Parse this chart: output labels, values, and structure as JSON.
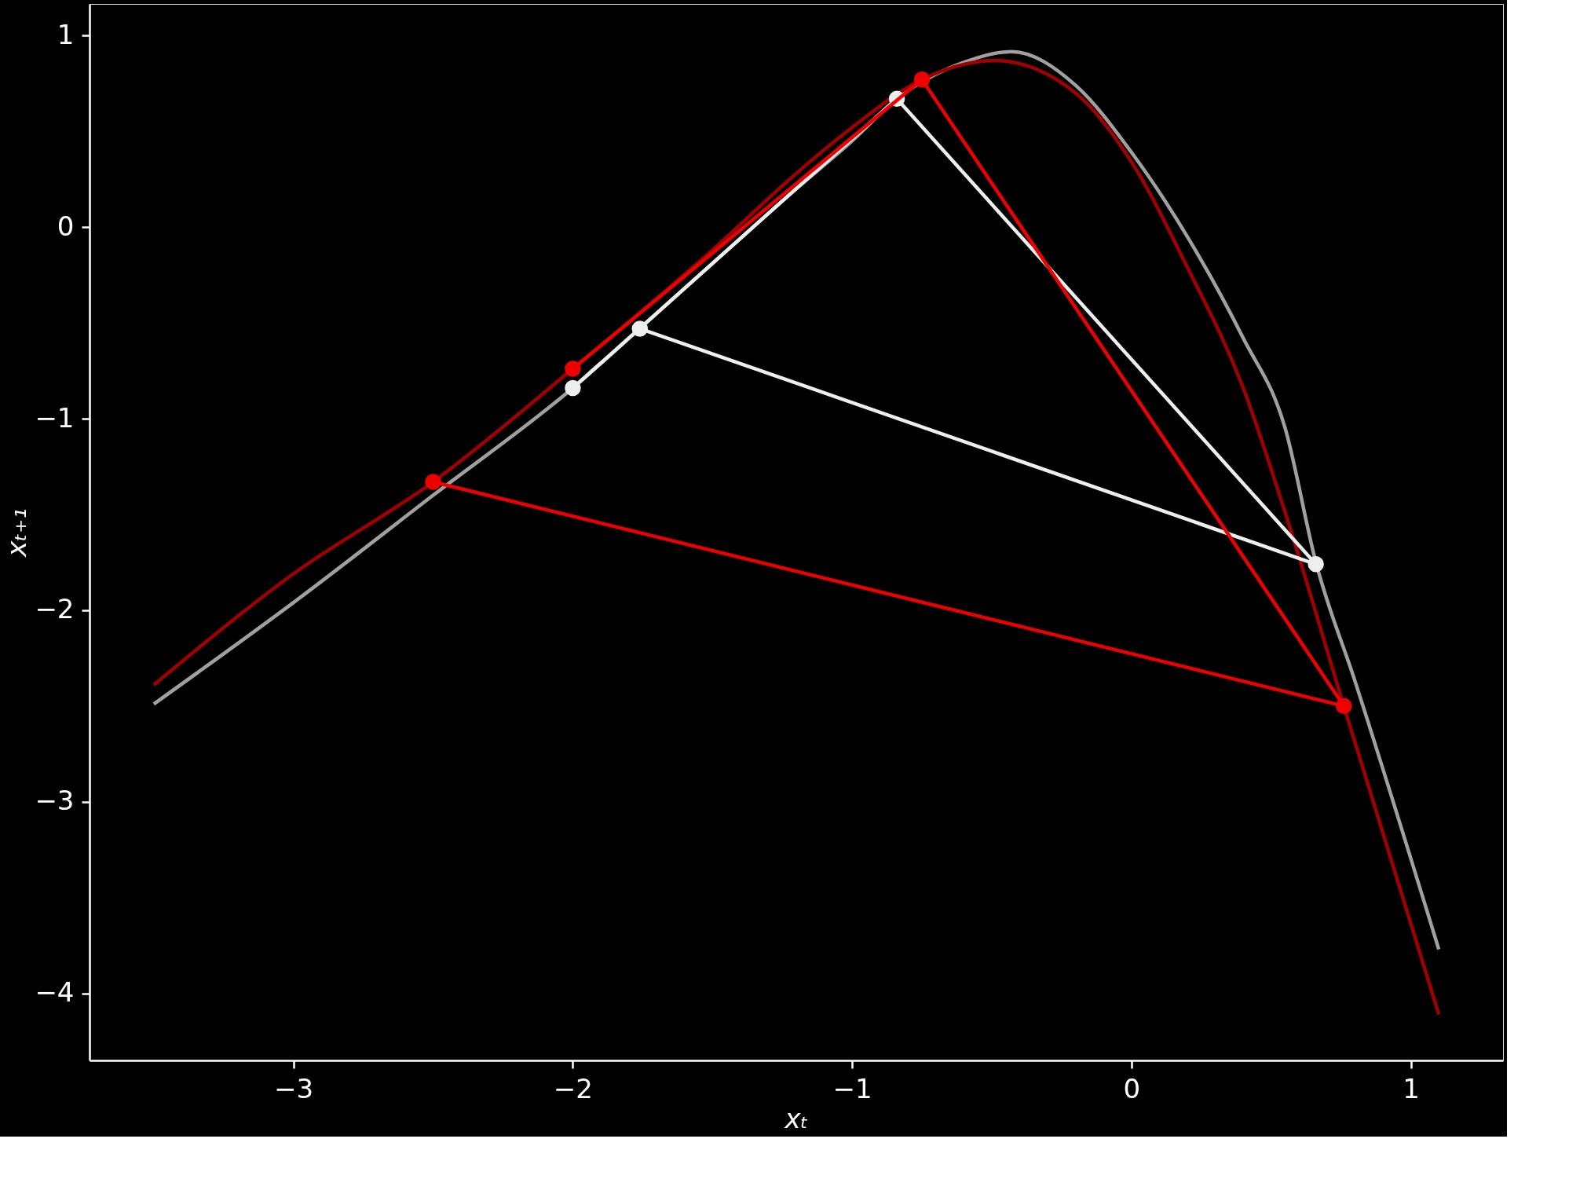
{
  "chart_data": {
    "type": "line",
    "xlabel": "xₜ",
    "ylabel": "xₜ₊₁",
    "xlim": [
      -3.73,
      1.33
    ],
    "ylim": [
      -4.35,
      1.165
    ],
    "xticks": [
      -3,
      -2,
      -1,
      0,
      1
    ],
    "yticks": [
      -4,
      -3,
      -2,
      -1,
      0,
      1
    ],
    "grid": false,
    "legend": false,
    "series": [
      {
        "marker": "none",
        "color": "#a0a0a0",
        "x": [
          -3.5,
          -3,
          -2.5,
          -2,
          -1.76,
          -1.5,
          -1.2,
          -1,
          -0.84,
          -0.6,
          -0.43,
          -0.2,
          0,
          0.2,
          0.4,
          0.55,
          0.66,
          0.8,
          1.1
        ],
        "values": [
          -2.49,
          -1.96,
          -1.4,
          -0.84,
          -0.53,
          -0.19,
          0.2,
          0.45,
          0.67,
          0.86,
          0.916,
          0.74,
          0.39,
          -0.05,
          -0.58,
          -1.05,
          -1.75,
          -2.37,
          -3.77
        ]
      },
      {
        "marker": "none",
        "color": "#a00000",
        "x": [
          -3.5,
          -3,
          -2.5,
          -2,
          -1.5,
          -1.2,
          -1,
          -0.75,
          -0.6,
          -0.49,
          -0.2,
          0,
          0.2,
          0.4,
          0.55,
          0.76,
          1.1
        ],
        "values": [
          -2.39,
          -1.81,
          -1.33,
          -0.74,
          -0.12,
          0.28,
          0.52,
          0.77,
          0.85,
          0.87,
          0.7,
          0.34,
          -0.21,
          -0.84,
          -1.49,
          -2.5,
          -4.11
        ]
      },
      {
        "marker": "circle",
        "color": "#eeeeee",
        "x": [
          -2.0,
          -0.84,
          0.66,
          -1.76
        ],
        "values": [
          -0.84,
          0.67,
          -1.76,
          -0.53
        ]
      },
      {
        "marker": "circle",
        "color": "#ee0000",
        "x": [
          -2.0,
          -0.75,
          0.76,
          -2.5
        ],
        "values": [
          -0.74,
          0.77,
          -2.5,
          -1.33
        ]
      }
    ]
  }
}
